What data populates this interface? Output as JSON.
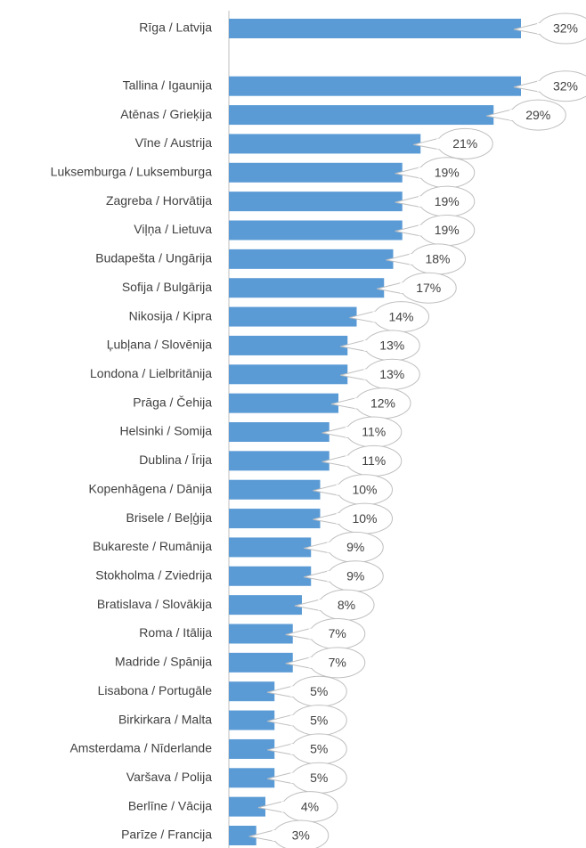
{
  "chart_data": {
    "type": "bar",
    "orientation": "horizontal",
    "color": "#5b9bd5",
    "categories": [
      "Rīga / Latvija",
      null,
      "Tallina / Igaunija",
      "Atēnas / Grieķija",
      "Vīne / Austrija",
      "Luksemburga / Luksemburga",
      "Zagreba / Horvātija",
      "Viļņa / Lietuva",
      "Budapešta / Ungārija",
      "Sofija / Bulgārija",
      "Nikosija / Kipra",
      "Ļubļana / Slovēnija",
      "Londona / Lielbritānija",
      "Prāga / Čehija",
      "Helsinki / Somija",
      "Dublina / Īrija",
      "Kopenhāgena / Dānija",
      "Brisele / Beļģija",
      "Bukareste / Rumānija",
      "Stokholma / Zviedrija",
      "Bratislava / Slovākija",
      "Roma / Itālija",
      "Madride / Spānija",
      "Lisabona / Portugāle",
      "Birkirkara / Malta",
      "Amsterdama / Nīderlande",
      "Varšava / Polija",
      "Berlīne / Vācija",
      "Parīze / Francija"
    ],
    "values": [
      32,
      null,
      32,
      29,
      21,
      19,
      19,
      19,
      18,
      17,
      14,
      13,
      13,
      12,
      11,
      11,
      10,
      10,
      9,
      9,
      8,
      7,
      7,
      5,
      5,
      5,
      5,
      4,
      3
    ],
    "value_labels": [
      "32%",
      null,
      "32%",
      "29%",
      "21%",
      "19%",
      "19%",
      "19%",
      "18%",
      "17%",
      "14%",
      "13%",
      "13%",
      "12%",
      "11%",
      "11%",
      "10%",
      "10%",
      "9%",
      "9%",
      "8%",
      "7%",
      "7%",
      "5%",
      "5%",
      "5%",
      "5%",
      "4%",
      "3%"
    ]
  }
}
